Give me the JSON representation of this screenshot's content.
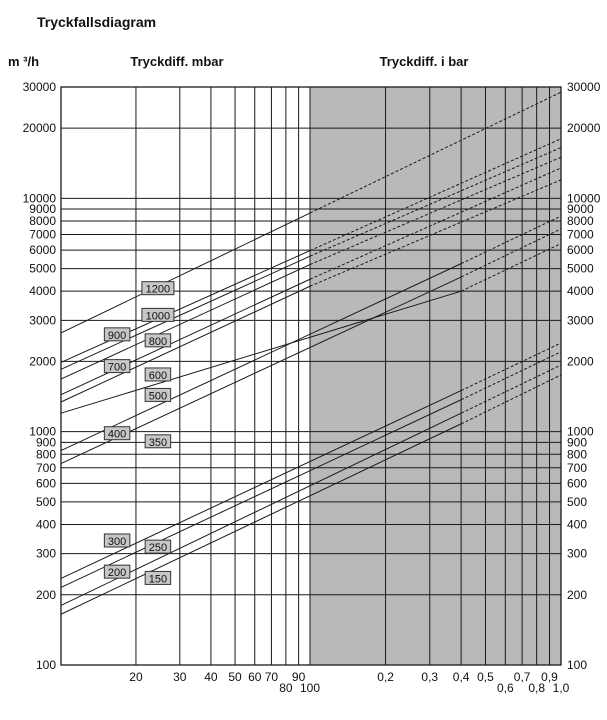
{
  "chart_data": {
    "type": "line",
    "title": "Tryckfallsdiagram",
    "y_unit_label": "m ³/h",
    "x_header_left": "Tryckdiff. mbar",
    "x_header_right": "Tryckdiff. i bar",
    "x_scale": "log",
    "y_scale": "log",
    "xlim_mbar": [
      10,
      1000
    ],
    "ylim": [
      100,
      30000
    ],
    "shaded_region_mbar": [
      100,
      1000
    ],
    "grid": true,
    "x_ticks": [
      {
        "v": 20,
        "t": "20",
        "row": 1
      },
      {
        "v": 30,
        "t": "30",
        "row": 1
      },
      {
        "v": 40,
        "t": "40",
        "row": 1
      },
      {
        "v": 50,
        "t": "50",
        "row": 1
      },
      {
        "v": 60,
        "t": "60",
        "row": 1
      },
      {
        "v": 70,
        "t": "70",
        "row": 1
      },
      {
        "v": 80,
        "t": "80",
        "row": 2
      },
      {
        "v": 90,
        "t": "90",
        "row": 1
      },
      {
        "v": 100,
        "t": "100",
        "row": 2
      },
      {
        "v": 200,
        "t": "0,2",
        "row": 1
      },
      {
        "v": 300,
        "t": "0,3",
        "row": 1
      },
      {
        "v": 400,
        "t": "0,4",
        "row": 1
      },
      {
        "v": 500,
        "t": "0,5",
        "row": 1
      },
      {
        "v": 600,
        "t": "0,6",
        "row": 2
      },
      {
        "v": 700,
        "t": "0,7",
        "row": 1
      },
      {
        "v": 800,
        "t": "0,8",
        "row": 2
      },
      {
        "v": 900,
        "t": "0,9",
        "row": 1
      },
      {
        "v": 1000,
        "t": "1,0",
        "row": 2
      }
    ],
    "y_ticks": [
      {
        "v": 100,
        "t": "100"
      },
      {
        "v": 200,
        "t": "200"
      },
      {
        "v": 300,
        "t": "300"
      },
      {
        "v": 400,
        "t": "400"
      },
      {
        "v": 500,
        "t": "500"
      },
      {
        "v": 600,
        "t": "600"
      },
      {
        "v": 700,
        "t": "700"
      },
      {
        "v": 800,
        "t": "800"
      },
      {
        "v": 900,
        "t": "900"
      },
      {
        "v": 1000,
        "t": "1000"
      },
      {
        "v": 2000,
        "t": "2000"
      },
      {
        "v": 3000,
        "t": "3000"
      },
      {
        "v": 4000,
        "t": "4000"
      },
      {
        "v": 5000,
        "t": "5000"
      },
      {
        "v": 6000,
        "t": "6000"
      },
      {
        "v": 7000,
        "t": "7000"
      },
      {
        "v": 8000,
        "t": "8000"
      },
      {
        "v": 9000,
        "t": "9000"
      },
      {
        "v": 10000,
        "t": "10000"
      },
      {
        "v": 20000,
        "t": "20000"
      },
      {
        "v": 30000,
        "t": "30000"
      }
    ],
    "series": [
      {
        "name": "1200",
        "start": [
          10,
          2650
        ],
        "solid_end": [
          100,
          8650
        ],
        "dashed_end": [
          1000,
          28500
        ],
        "label_at": [
          24.5,
          4100
        ]
      },
      {
        "name": "1000",
        "start": [
          10,
          1980
        ],
        "solid_end": [
          100,
          5970
        ],
        "dashed_end": [
          1000,
          18000
        ],
        "label_at": [
          24.5,
          3150
        ]
      },
      {
        "name": "900",
        "start": [
          10,
          1850
        ],
        "solid_end": [
          100,
          5650
        ],
        "dashed_end": [
          1000,
          16500
        ],
        "label_at": [
          16.8,
          2600
        ]
      },
      {
        "name": "800",
        "start": [
          10,
          1680
        ],
        "solid_end": [
          100,
          5200
        ],
        "dashed_end": [
          1000,
          15000
        ],
        "label_at": [
          24.5,
          2450
        ]
      },
      {
        "name": "700",
        "start": [
          10,
          1440
        ],
        "solid_end": [
          100,
          4500
        ],
        "dashed_end": [
          1000,
          13500
        ],
        "label_at": [
          16.8,
          1900
        ]
      },
      {
        "name": "600",
        "start": [
          10,
          1340
        ],
        "solid_end": [
          100,
          4200
        ],
        "dashed_end": [
          1000,
          12000
        ],
        "label_at": [
          24.5,
          1750
        ]
      },
      {
        "name": "500",
        "start": [
          10,
          1200
        ],
        "solid_end": [
          400,
          4000
        ],
        "dashed_end": [
          1000,
          6400
        ],
        "label_at": [
          24.5,
          1430
        ]
      },
      {
        "name": "400",
        "start": [
          10,
          830
        ],
        "solid_end": [
          400,
          5250
        ],
        "dashed_end": [
          1000,
          8400
        ],
        "label_at": [
          16.8,
          980
        ]
      },
      {
        "name": "350",
        "start": [
          10,
          730
        ],
        "solid_end": [
          400,
          4600
        ],
        "dashed_end": [
          1000,
          7400
        ],
        "label_at": [
          24.5,
          905
        ]
      },
      {
        "name": "300",
        "start": [
          10,
          235
        ],
        "solid_end": [
          400,
          1500
        ],
        "dashed_end": [
          1000,
          2400
        ],
        "label_at": [
          16.8,
          340
        ]
      },
      {
        "name": "250",
        "start": [
          10,
          215
        ],
        "solid_end": [
          400,
          1370
        ],
        "dashed_end": [
          1000,
          2200
        ],
        "label_at": [
          24.5,
          320
        ]
      },
      {
        "name": "200",
        "start": [
          10,
          180
        ],
        "solid_end": [
          400,
          1200
        ],
        "dashed_end": [
          1000,
          1930
        ],
        "label_at": [
          16.8,
          250
        ]
      },
      {
        "name": "150",
        "start": [
          10,
          165
        ],
        "solid_end": [
          400,
          1080
        ],
        "dashed_end": [
          1000,
          1750
        ],
        "label_at": [
          24.5,
          235
        ]
      }
    ],
    "colors": {
      "shade": "#b9b9b9",
      "line": "#1a1a1a",
      "label_box": "#c7c7c7"
    }
  }
}
